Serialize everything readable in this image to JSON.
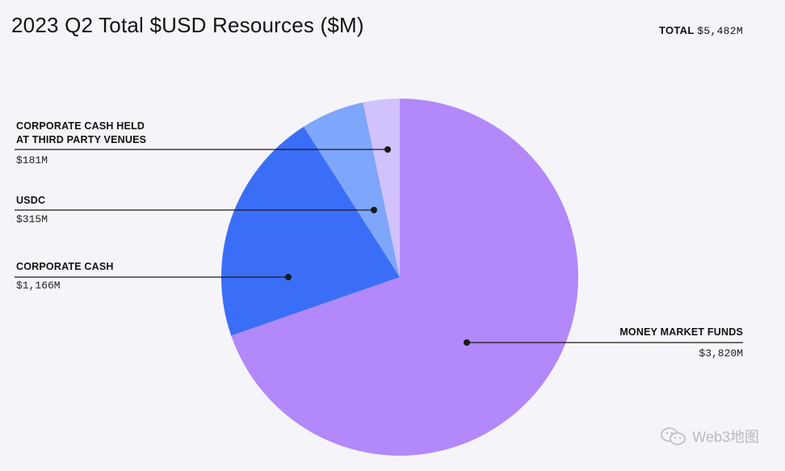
{
  "title": "2023 Q2 Total $USD Resources ($M)",
  "total": {
    "label": "TOTAL",
    "value": "$5,482M"
  },
  "watermark": "Web3地图",
  "watermark_icon": "wechat-icon",
  "chart_data": {
    "type": "pie",
    "title": "2023 Q2 Total $USD Resources ($M)",
    "unit": "$M",
    "total": 5482,
    "start_angle_deg": 0,
    "direction": "clockwise",
    "slices": [
      {
        "label": "MONEY MARKET FUNDS",
        "value": 3820,
        "value_label": "$3,820M",
        "color": "#b388fa"
      },
      {
        "label": "CORPORATE CASH",
        "value": 1166,
        "value_label": "$1,166M",
        "color": "#3b6ef7"
      },
      {
        "label": "USDC",
        "value": 315,
        "value_label": "$315M",
        "color": "#7ea6fb"
      },
      {
        "label": "CORPORATE CASH HELD AT THIRD PARTY VENUES",
        "value": 181,
        "value_label": "$181M",
        "color": "#d2c2fc",
        "label_lines": [
          "CORPORATE CASH HELD",
          "AT THIRD PARTY VENUES"
        ]
      }
    ]
  }
}
